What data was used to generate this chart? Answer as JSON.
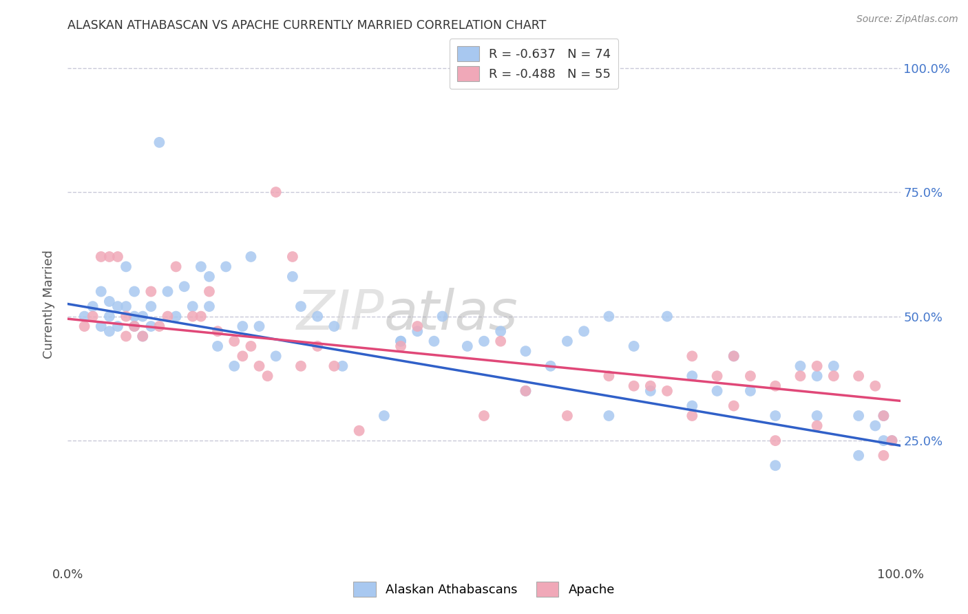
{
  "title": "ALASKAN ATHABASCAN VS APACHE CURRENTLY MARRIED CORRELATION CHART",
  "source": "Source: ZipAtlas.com",
  "ylabel": "Currently Married",
  "blue_color": "#A8C8F0",
  "pink_color": "#F0A8B8",
  "blue_line_color": "#3060C8",
  "pink_line_color": "#E04878",
  "background_color": "#FFFFFF",
  "grid_color": "#C8C8D8",
  "blue_R": -0.637,
  "blue_N": 74,
  "pink_R": -0.488,
  "pink_N": 55,
  "blue_scatter_x": [
    0.02,
    0.03,
    0.04,
    0.04,
    0.05,
    0.05,
    0.05,
    0.06,
    0.06,
    0.07,
    0.07,
    0.08,
    0.08,
    0.08,
    0.09,
    0.09,
    0.1,
    0.1,
    0.11,
    0.12,
    0.13,
    0.14,
    0.15,
    0.16,
    0.17,
    0.17,
    0.18,
    0.19,
    0.2,
    0.21,
    0.22,
    0.23,
    0.25,
    0.27,
    0.28,
    0.3,
    0.32,
    0.33,
    0.38,
    0.4,
    0.42,
    0.44,
    0.45,
    0.48,
    0.5,
    0.52,
    0.55,
    0.58,
    0.6,
    0.62,
    0.65,
    0.68,
    0.7,
    0.72,
    0.75,
    0.78,
    0.8,
    0.82,
    0.85,
    0.88,
    0.9,
    0.92,
    0.95,
    0.97,
    0.98,
    0.99,
    0.4,
    0.55,
    0.65,
    0.75,
    0.85,
    0.9,
    0.95,
    0.98
  ],
  "blue_scatter_y": [
    0.5,
    0.52,
    0.48,
    0.55,
    0.5,
    0.47,
    0.53,
    0.52,
    0.48,
    0.6,
    0.52,
    0.5,
    0.48,
    0.55,
    0.5,
    0.46,
    0.52,
    0.48,
    0.85,
    0.55,
    0.5,
    0.56,
    0.52,
    0.6,
    0.52,
    0.58,
    0.44,
    0.6,
    0.4,
    0.48,
    0.62,
    0.48,
    0.42,
    0.58,
    0.52,
    0.5,
    0.48,
    0.4,
    0.3,
    0.45,
    0.47,
    0.45,
    0.5,
    0.44,
    0.45,
    0.47,
    0.43,
    0.4,
    0.45,
    0.47,
    0.5,
    0.44,
    0.35,
    0.5,
    0.38,
    0.35,
    0.42,
    0.35,
    0.3,
    0.4,
    0.38,
    0.4,
    0.3,
    0.28,
    0.3,
    0.25,
    0.45,
    0.35,
    0.3,
    0.32,
    0.2,
    0.3,
    0.22,
    0.25
  ],
  "pink_scatter_x": [
    0.02,
    0.03,
    0.04,
    0.05,
    0.06,
    0.07,
    0.07,
    0.08,
    0.09,
    0.1,
    0.11,
    0.12,
    0.13,
    0.15,
    0.16,
    0.17,
    0.18,
    0.2,
    0.21,
    0.22,
    0.23,
    0.24,
    0.25,
    0.27,
    0.28,
    0.3,
    0.32,
    0.35,
    0.4,
    0.42,
    0.5,
    0.52,
    0.55,
    0.6,
    0.65,
    0.68,
    0.7,
    0.72,
    0.75,
    0.78,
    0.8,
    0.82,
    0.85,
    0.88,
    0.9,
    0.92,
    0.95,
    0.97,
    0.98,
    0.99,
    0.75,
    0.8,
    0.85,
    0.9,
    0.98
  ],
  "pink_scatter_y": [
    0.48,
    0.5,
    0.62,
    0.62,
    0.62,
    0.5,
    0.46,
    0.48,
    0.46,
    0.55,
    0.48,
    0.5,
    0.6,
    0.5,
    0.5,
    0.55,
    0.47,
    0.45,
    0.42,
    0.44,
    0.4,
    0.38,
    0.75,
    0.62,
    0.4,
    0.44,
    0.4,
    0.27,
    0.44,
    0.48,
    0.3,
    0.45,
    0.35,
    0.3,
    0.38,
    0.36,
    0.36,
    0.35,
    0.42,
    0.38,
    0.42,
    0.38,
    0.36,
    0.38,
    0.4,
    0.38,
    0.38,
    0.36,
    0.3,
    0.25,
    0.3,
    0.32,
    0.25,
    0.28,
    0.22
  ]
}
